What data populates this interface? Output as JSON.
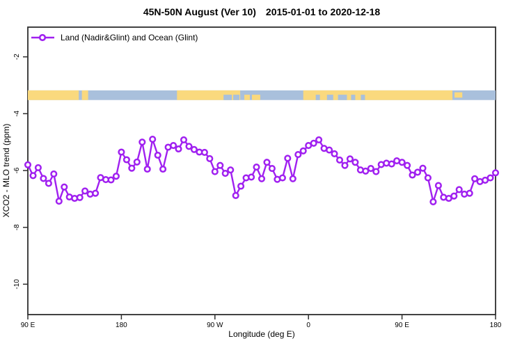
{
  "header": {
    "title_main": "45N-50N August (Ver 10)",
    "title_dates": "2015-01-01 to 2020-12-18"
  },
  "legend": {
    "label": "Land (Nadir&Glint) and Ocean (Glint)"
  },
  "axes": {
    "x_title": "Longitude (deg E)",
    "y_title": "XCO2 - MLO trend (ppm)"
  },
  "chart_data": {
    "type": "line",
    "title": "45N-50N August (Ver 10)   2015-01-01 to 2020-12-18",
    "xlabel": "Longitude (deg E)",
    "ylabel": "XCO2 - MLO trend (ppm)",
    "grid": false,
    "legend_position": "top-left-inside",
    "x_axis": {
      "start_deg": 90,
      "end_deg": 540,
      "ticks": [
        {
          "deg": 90,
          "label": "90 E"
        },
        {
          "deg": 180,
          "label": "180"
        },
        {
          "deg": 270,
          "label": "90 W"
        },
        {
          "deg": 360,
          "label": "0"
        },
        {
          "deg": 450,
          "label": "90 E"
        },
        {
          "deg": 540,
          "label": "180"
        }
      ]
    },
    "y_axis": {
      "min": -11.1,
      "max": -0.95,
      "ticks": [
        {
          "value": -2,
          "label": "-2"
        },
        {
          "value": -4,
          "label": "-4"
        },
        {
          "value": -6,
          "label": "-6"
        },
        {
          "value": -8,
          "label": "-8"
        },
        {
          "value": -10,
          "label": "-10"
        }
      ]
    },
    "series": [
      {
        "name": "Land (Nadir&Glint) and Ocean (Glint)",
        "color": "#A020F0",
        "marker": "open-circle",
        "lon_start_deg": 90,
        "lon_step_deg": 5,
        "values": [
          -5.8,
          -6.18,
          -5.9,
          -6.28,
          -6.45,
          -6.12,
          -7.08,
          -6.58,
          -6.93,
          -6.98,
          -6.95,
          -6.72,
          -6.83,
          -6.8,
          -6.25,
          -6.32,
          -6.33,
          -6.2,
          -5.35,
          -5.62,
          -5.92,
          -5.7,
          -5.0,
          -5.95,
          -4.9,
          -5.46,
          -5.95,
          -5.18,
          -5.12,
          -5.24,
          -4.92,
          -5.15,
          -5.26,
          -5.35,
          -5.36,
          -5.58,
          -6.04,
          -5.82,
          -6.1,
          -5.98,
          -6.88,
          -6.55,
          -6.26,
          -6.23,
          -5.88,
          -6.29,
          -5.71,
          -5.93,
          -6.31,
          -6.26,
          -5.57,
          -6.29,
          -5.44,
          -5.31,
          -5.12,
          -5.04,
          -4.92,
          -5.22,
          -5.28,
          -5.41,
          -5.63,
          -5.82,
          -5.59,
          -5.71,
          -5.98,
          -6.02,
          -5.93,
          -6.04,
          -5.79,
          -5.74,
          -5.77,
          -5.66,
          -5.71,
          -5.82,
          -6.16,
          -6.06,
          -5.92,
          -6.26,
          -7.1,
          -6.53,
          -6.94,
          -6.98,
          -6.9,
          -6.67,
          -6.83,
          -6.8,
          -6.29,
          -6.39,
          -6.34,
          -6.26,
          -6.08
        ]
      }
    ],
    "map_band": {
      "description": "land vs ocean strip for 45N-50N by longitude",
      "y_value_range": [
        -3.18,
        -3.52
      ],
      "land_color": "#FAD97E",
      "ocean_color": "#A9C0DC",
      "segments": [
        {
          "type": "ocean",
          "from_deg": 90,
          "to_deg": 540,
          "part": "full"
        },
        {
          "type": "land",
          "from_deg": 90,
          "to_deg": 139,
          "part": "full"
        },
        {
          "type": "land",
          "from_deg": 142,
          "to_deg": 148,
          "part": "full"
        },
        {
          "type": "land",
          "from_deg": 233.5,
          "to_deg": 294.3,
          "part": "full"
        },
        {
          "type": "land",
          "from_deg": 355,
          "to_deg": 498.5,
          "part": "full"
        },
        {
          "type": "land",
          "from_deg": 500.5,
          "to_deg": 508,
          "part": "mid"
        },
        {
          "type": "ocean",
          "from_deg": 278.3,
          "to_deg": 286.3,
          "part": "lower"
        },
        {
          "type": "ocean",
          "from_deg": 287.6,
          "to_deg": 293.6,
          "part": "lower"
        },
        {
          "type": "ocean",
          "from_deg": 367,
          "to_deg": 371,
          "part": "lower"
        },
        {
          "type": "ocean",
          "from_deg": 377.8,
          "to_deg": 383.8,
          "part": "lower"
        },
        {
          "type": "ocean",
          "from_deg": 388.4,
          "to_deg": 397,
          "part": "lower"
        },
        {
          "type": "ocean",
          "from_deg": 401,
          "to_deg": 405,
          "part": "lower"
        },
        {
          "type": "ocean",
          "from_deg": 410.4,
          "to_deg": 414.4,
          "part": "lower"
        },
        {
          "type": "land",
          "from_deg": 298.3,
          "to_deg": 303.6,
          "part": "lower"
        },
        {
          "type": "land",
          "from_deg": 305.6,
          "to_deg": 313.6,
          "part": "lower"
        }
      ]
    }
  },
  "colors": {
    "series_purple": "#A020F0",
    "land_orange": "#FAD97E",
    "ocean_blue": "#A9C0DC",
    "axis_dark": "#2e2e2e"
  }
}
